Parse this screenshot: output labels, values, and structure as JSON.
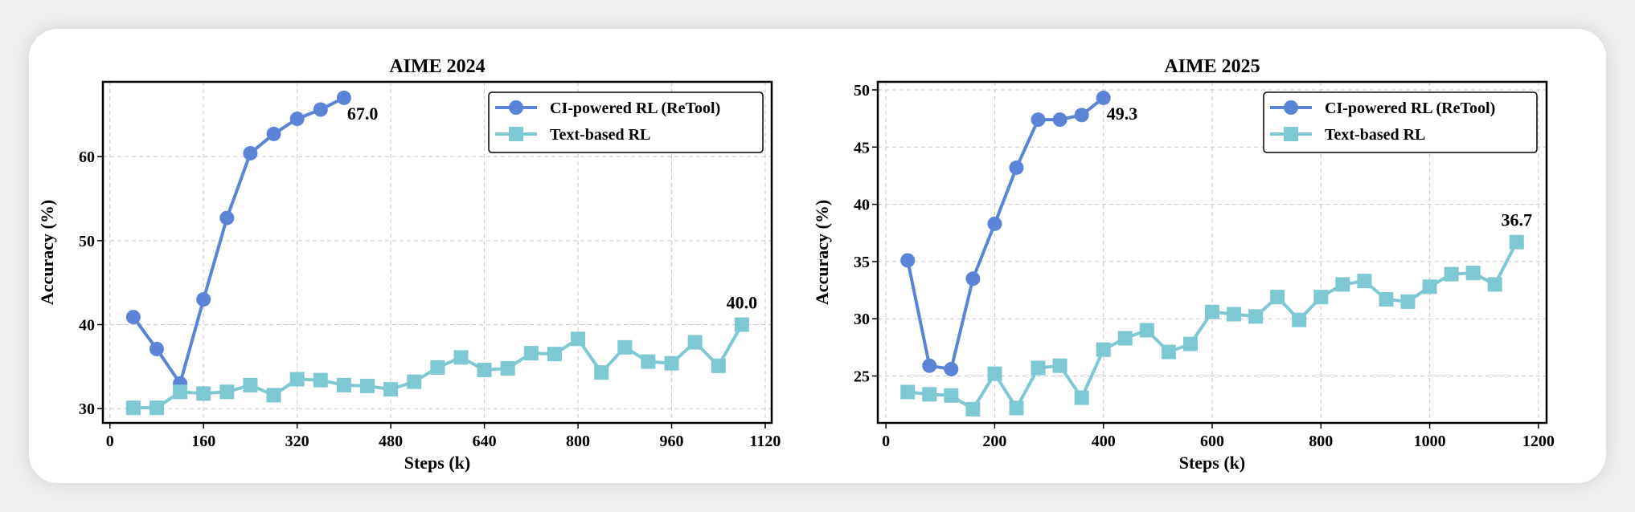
{
  "chart_data": [
    {
      "type": "line",
      "title": "AIME 2024",
      "xlabel": "Steps (k)",
      "ylabel": "Accuracy (%)",
      "xlim": [
        -12,
        1131
      ],
      "ylim": [
        28.3,
        68.9
      ],
      "xticks": [
        0,
        160,
        320,
        480,
        640,
        800,
        960,
        1120
      ],
      "yticks": [
        30,
        40,
        50,
        60
      ],
      "grid": true,
      "legend_position": "top-right",
      "series": [
        {
          "name": "CI-powered RL (ReTool)",
          "color": "#5b84d6",
          "marker": "circle",
          "x": [
            40,
            80,
            120,
            160,
            200,
            240,
            280,
            320,
            360,
            400
          ],
          "y": [
            40.9,
            37.1,
            33.0,
            43.0,
            52.7,
            60.4,
            62.7,
            64.5,
            65.6,
            67.0
          ],
          "end_label": "67.0"
        },
        {
          "name": "Text-based RL",
          "color": "#7ec8d3",
          "marker": "square",
          "x": [
            40,
            80,
            120,
            160,
            200,
            240,
            280,
            320,
            360,
            400,
            440,
            480,
            520,
            560,
            600,
            640,
            680,
            720,
            760,
            800,
            840,
            880,
            920,
            960,
            1000,
            1040,
            1080
          ],
          "y": [
            30.1,
            30.1,
            32.0,
            31.8,
            32.0,
            32.8,
            31.6,
            33.5,
            33.4,
            32.8,
            32.7,
            32.3,
            33.2,
            34.9,
            36.1,
            34.6,
            34.8,
            36.6,
            36.5,
            38.3,
            34.3,
            37.3,
            35.6,
            35.4,
            37.9,
            35.1,
            40.0
          ],
          "end_label": "40.0"
        }
      ]
    },
    {
      "type": "line",
      "title": "AIME 2025",
      "xlabel": "Steps (k)",
      "ylabel": "Accuracy (%)",
      "xlim": [
        -15,
        1215
      ],
      "ylim": [
        20.9,
        50.7
      ],
      "xticks": [
        0,
        200,
        400,
        600,
        800,
        1000,
        1200
      ],
      "yticks": [
        25,
        30,
        35,
        40,
        45,
        50
      ],
      "grid": true,
      "legend_position": "top-right",
      "series": [
        {
          "name": "CI-powered RL (ReTool)",
          "color": "#5b84d6",
          "marker": "circle",
          "x": [
            40,
            80,
            120,
            160,
            200,
            240,
            280,
            320,
            360,
            400
          ],
          "y": [
            35.1,
            25.9,
            25.6,
            33.5,
            38.3,
            43.2,
            47.4,
            47.4,
            47.8,
            49.3
          ],
          "end_label": "49.3"
        },
        {
          "name": "Text-based RL",
          "color": "#7ec8d3",
          "marker": "square",
          "x": [
            40,
            80,
            120,
            160,
            200,
            240,
            280,
            320,
            360,
            400,
            440,
            480,
            520,
            560,
            600,
            640,
            680,
            720,
            760,
            800,
            840,
            880,
            920,
            960,
            1000,
            1040,
            1080,
            1120,
            1160
          ],
          "y": [
            23.6,
            23.4,
            23.3,
            22.1,
            25.2,
            22.2,
            25.7,
            25.9,
            23.1,
            27.3,
            28.3,
            29.0,
            27.1,
            27.8,
            30.6,
            30.4,
            30.2,
            31.9,
            29.9,
            31.9,
            33.0,
            33.3,
            31.7,
            31.5,
            32.8,
            33.9,
            34.0,
            33.0,
            36.7
          ],
          "end_label": "36.7"
        }
      ]
    }
  ]
}
